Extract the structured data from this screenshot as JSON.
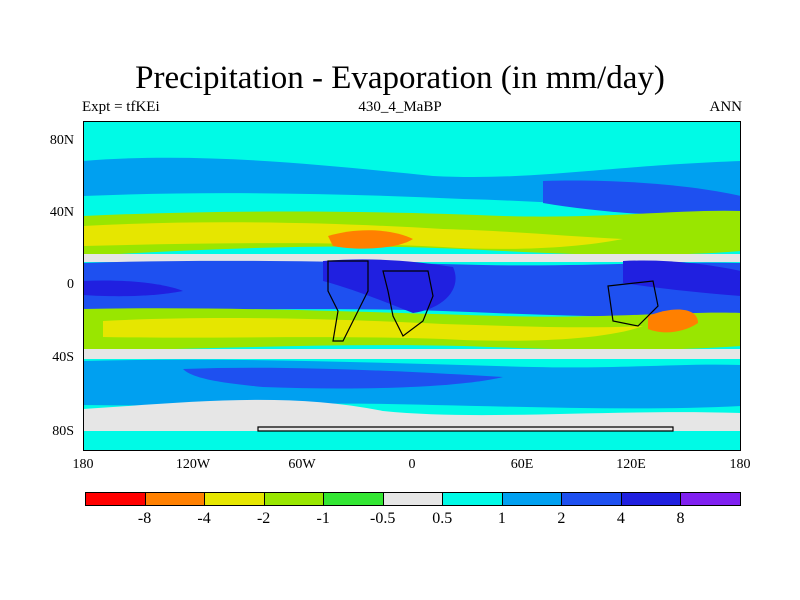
{
  "header": {
    "title": "Precipitation - Evaporation (in mm/day)",
    "left_label": "Expt = tfKEi",
    "center_label": "430_4_MaBP",
    "right_label": "ANN"
  },
  "axes": {
    "lat_ticks": [
      "80N",
      "40N",
      "0",
      "40S",
      "80S"
    ],
    "lon_ticks": [
      "180",
      "120W",
      "60W",
      "0",
      "60E",
      "120E",
      "180"
    ]
  },
  "colorbar": {
    "colors": [
      "#ff0000",
      "#ff8000",
      "#e6e600",
      "#99e600",
      "#33e633",
      "#e6e6e6",
      "#00fae6",
      "#00a0f0",
      "#1e50f0",
      "#2020e0",
      "#8020f0"
    ],
    "labels": [
      "-8",
      "-4",
      "-2",
      "-1",
      "-0.5",
      "0.5",
      "1",
      "2",
      "4",
      "8"
    ]
  },
  "chart_data": {
    "type": "heatmap",
    "title": "Precipitation - Evaporation (in mm/day)",
    "lon_range": [
      -180,
      180
    ],
    "lat_range": [
      -90,
      90
    ],
    "levels": [
      -8,
      -4,
      -2,
      -1,
      -0.5,
      0.5,
      1,
      2,
      4,
      8
    ],
    "zonal_bands": [
      {
        "lat_from": 90,
        "lat_to": 74,
        "category": "1"
      },
      {
        "lat_from": 74,
        "lat_to": 62,
        "category": "0.5 to 1"
      },
      {
        "lat_from": 62,
        "lat_to": 45,
        "category": "1 to 2"
      },
      {
        "lat_from": 45,
        "lat_to": 38,
        "category": "0.5 to 1"
      },
      {
        "lat_from": 38,
        "lat_to": 26,
        "category": "-1 to -0.5"
      },
      {
        "lat_from": 26,
        "lat_to": 14,
        "category": "-2 to -1"
      },
      {
        "lat_from": 14,
        "lat_to": 7,
        "category": "-0.5 to 0.5"
      },
      {
        "lat_from": 7,
        "lat_to": -7,
        "category": "4 to 8"
      },
      {
        "lat_from": -7,
        "lat_to": -13,
        "category": "1 to 2"
      },
      {
        "lat_from": -13,
        "lat_to": -32,
        "category": "-2 to -1"
      },
      {
        "lat_from": -32,
        "lat_to": -42,
        "category": "-1 to -0.5"
      },
      {
        "lat_from": -42,
        "lat_to": -50,
        "category": "0.5 to 1"
      },
      {
        "lat_from": -50,
        "lat_to": -66,
        "category": "1 to 2"
      },
      {
        "lat_from": -66,
        "lat_to": -78,
        "category": "-0.5 to 0.5"
      },
      {
        "lat_from": -78,
        "lat_to": -90,
        "category": "0.5 to 1"
      }
    ]
  }
}
